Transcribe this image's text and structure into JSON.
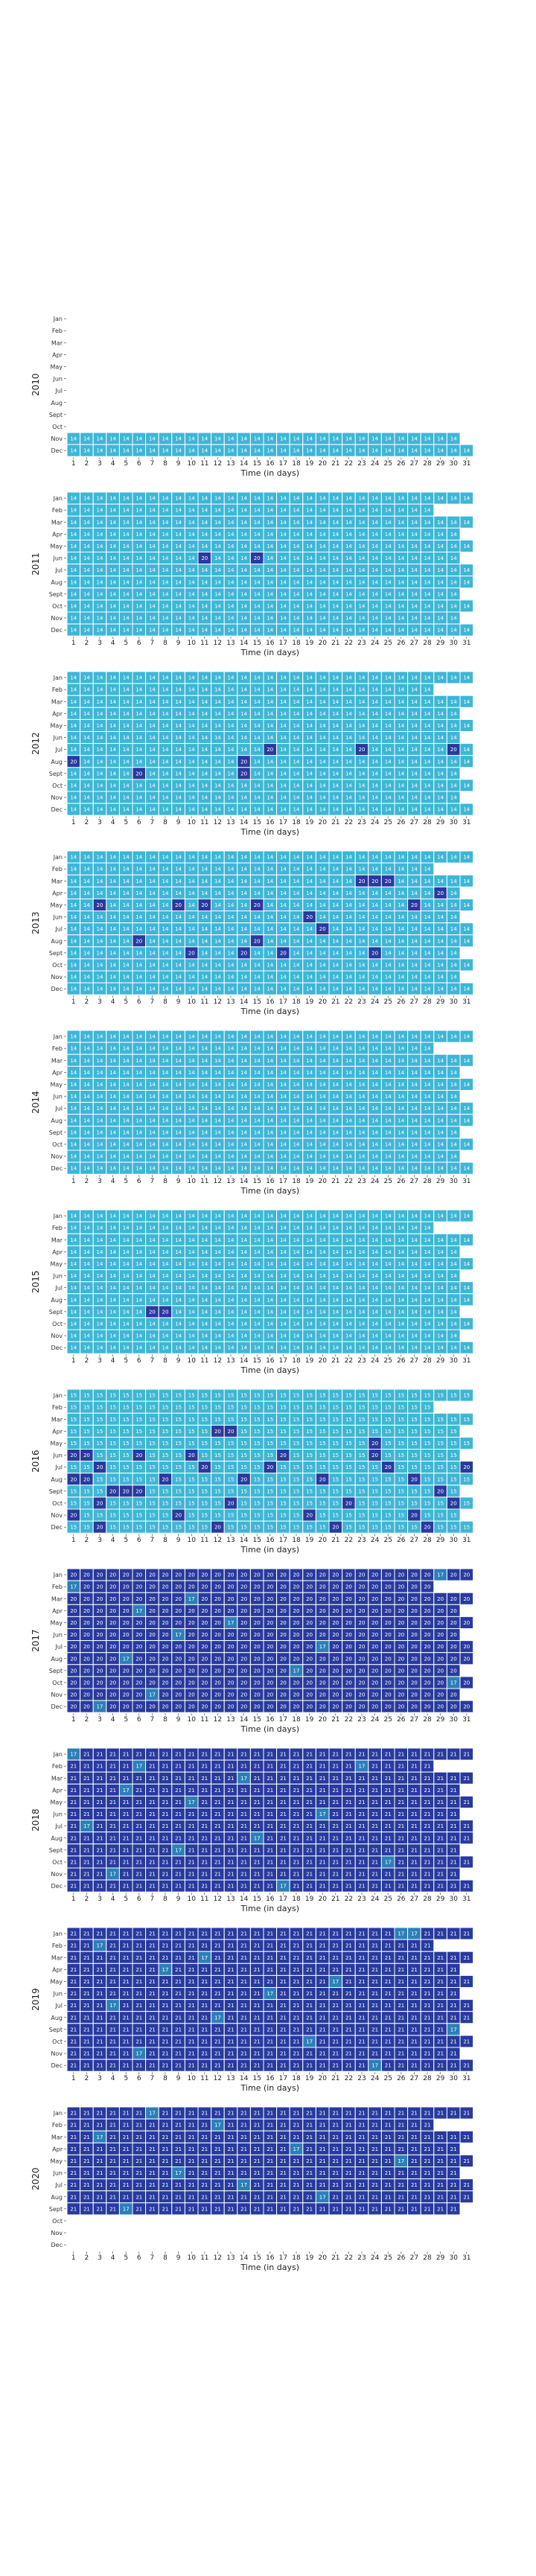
{
  "chart_data": {
    "type": "heatmap",
    "title": "",
    "xlabel": "Time (in days)",
    "x_ticks": [
      "1",
      "2",
      "3",
      "4",
      "5",
      "6",
      "7",
      "8",
      "9",
      "10",
      "11",
      "12",
      "13",
      "14",
      "15",
      "16",
      "17",
      "18",
      "19",
      "20",
      "21",
      "22",
      "23",
      "24",
      "25",
      "26",
      "27",
      "28",
      "29",
      "30",
      "31"
    ],
    "month_labels": [
      "Jan",
      "Feb",
      "Mar",
      "Apr",
      "May",
      "Jun",
      "Jul",
      "Aug",
      "Sept",
      "Oct",
      "Nov",
      "Dec"
    ],
    "colors": {
      "light": "#3eb6d6",
      "medium": "#2c7fb8",
      "dark": "#283a9e",
      "cell_border": "#ffffff",
      "cell_text": "#ffffff"
    },
    "color_thresholds": {
      "medium_min": 17,
      "dark_min": 20
    },
    "years": [
      {
        "year": "2010",
        "start_month": 11,
        "end_month": 12,
        "base": 14,
        "high_days": []
      },
      {
        "year": "2011",
        "base": 14,
        "high_days": [
          [
            6,
            11
          ],
          [
            6,
            15
          ]
        ]
      },
      {
        "year": "2012",
        "base": 14,
        "high_days": [
          [
            7,
            30
          ],
          [
            7,
            23
          ],
          [
            7,
            16
          ],
          [
            8,
            1
          ],
          [
            8,
            14
          ],
          [
            9,
            6
          ],
          [
            9,
            14
          ]
        ]
      },
      {
        "year": "2013",
        "base": 14,
        "high_days": [
          [
            3,
            23
          ],
          [
            3,
            24
          ],
          [
            3,
            25
          ],
          [
            4,
            29
          ],
          [
            5,
            3
          ],
          [
            5,
            9
          ],
          [
            5,
            11
          ],
          [
            5,
            15
          ],
          [
            5,
            27
          ],
          [
            6,
            19
          ],
          [
            7,
            20
          ],
          [
            8,
            6
          ],
          [
            8,
            15
          ],
          [
            9,
            10
          ],
          [
            9,
            14
          ],
          [
            9,
            17
          ],
          [
            9,
            24
          ]
        ]
      },
      {
        "year": "2014",
        "base": 14,
        "high_days": []
      },
      {
        "year": "2015",
        "base": 14,
        "high_days": [
          [
            9,
            7
          ],
          [
            9,
            8
          ]
        ]
      },
      {
        "year": "2016",
        "base": 15,
        "high_days": [
          [
            4,
            12
          ],
          [
            4,
            13
          ],
          [
            5,
            24
          ],
          [
            6,
            1
          ],
          [
            6,
            2
          ],
          [
            6,
            6
          ],
          [
            6,
            10
          ],
          [
            6,
            17
          ],
          [
            6,
            24
          ],
          [
            7,
            3
          ],
          [
            7,
            11
          ],
          [
            7,
            16
          ],
          [
            7,
            25
          ],
          [
            7,
            31
          ],
          [
            8,
            1
          ],
          [
            8,
            2
          ],
          [
            8,
            8
          ],
          [
            8,
            14
          ],
          [
            8,
            20
          ],
          [
            8,
            27
          ],
          [
            9,
            4
          ],
          [
            9,
            5
          ],
          [
            9,
            6
          ],
          [
            9,
            29
          ],
          [
            10,
            3
          ],
          [
            10,
            13
          ],
          [
            10,
            22
          ],
          [
            10,
            30
          ],
          [
            11,
            1
          ],
          [
            11,
            9
          ],
          [
            11,
            19
          ],
          [
            11,
            27
          ],
          [
            12,
            3
          ],
          [
            12,
            12
          ],
          [
            12,
            21
          ],
          [
            12,
            28
          ]
        ]
      },
      {
        "year": "2017",
        "base": 20,
        "low_days": [
          [
            1,
            29
          ],
          [
            2,
            1
          ],
          [
            3,
            10
          ],
          [
            4,
            6
          ],
          [
            5,
            13
          ],
          [
            6,
            9
          ],
          [
            7,
            20
          ],
          [
            8,
            5
          ],
          [
            9,
            18
          ],
          [
            10,
            30
          ],
          [
            11,
            7
          ],
          [
            12,
            3
          ]
        ]
      },
      {
        "year": "2018",
        "base": 21,
        "low_days": [
          [
            1,
            1
          ],
          [
            2,
            6
          ],
          [
            2,
            23
          ],
          [
            3,
            14
          ],
          [
            4,
            5
          ],
          [
            5,
            10
          ],
          [
            6,
            20
          ],
          [
            7,
            2
          ],
          [
            8,
            15
          ],
          [
            9,
            9
          ],
          [
            10,
            25
          ],
          [
            11,
            4
          ],
          [
            12,
            17
          ]
        ]
      },
      {
        "year": "2019",
        "base": 21,
        "low_days": [
          [
            1,
            26
          ],
          [
            1,
            27
          ],
          [
            2,
            3
          ],
          [
            3,
            11
          ],
          [
            4,
            8
          ],
          [
            5,
            21
          ],
          [
            6,
            16
          ],
          [
            7,
            4
          ],
          [
            8,
            12
          ],
          [
            9,
            30
          ],
          [
            10,
            19
          ],
          [
            11,
            6
          ],
          [
            12,
            24
          ]
        ]
      },
      {
        "year": "2020",
        "start_month": 1,
        "end_month": 9,
        "base": 21,
        "low_days": [
          [
            1,
            7
          ],
          [
            2,
            12
          ],
          [
            3,
            3
          ],
          [
            4,
            18
          ],
          [
            5,
            26
          ],
          [
            6,
            9
          ],
          [
            7,
            14
          ],
          [
            8,
            20
          ],
          [
            9,
            5
          ]
        ]
      }
    ]
  }
}
